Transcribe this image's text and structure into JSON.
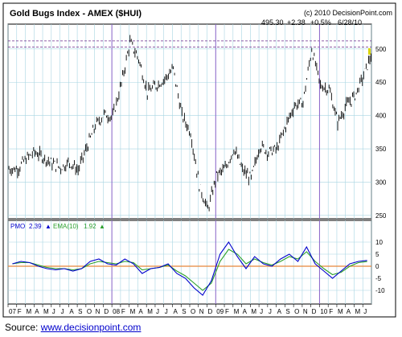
{
  "chart_data": [
    {
      "type": "line",
      "title": "Gold Bugs Index - AMEX ($HUI)",
      "copyright": "(c) 2010 DecisionPoint.com",
      "readout": {
        "last": "495.30",
        "change": "+2.38",
        "pct_change": "+0.5%",
        "date": "6/28/10"
      },
      "y_ticks": [
        "250",
        "300",
        "350",
        "400",
        "450",
        "500"
      ],
      "ylim": [
        245,
        530
      ],
      "reference_lines": [
        503,
        512
      ],
      "grid": true,
      "year_lines": [
        "2008-01",
        "2009-01",
        "2010-01"
      ],
      "series": [
        {
          "color": "#000000",
          "x": [
            "2007-01",
            "2007-02",
            "2007-03",
            "2007-04",
            "2007-05",
            "2007-06",
            "2007-07",
            "2007-08",
            "2007-09",
            "2007-10",
            "2007-11",
            "2007-12",
            "2008-01",
            "2008-02",
            "2008-03",
            "2008-04",
            "2008-05",
            "2008-06",
            "2008-07",
            "2008-08",
            "2008-09",
            "2008-10",
            "2008-11",
            "2008-12",
            "2009-01",
            "2009-02",
            "2009-03",
            "2009-04",
            "2009-05",
            "2009-06",
            "2009-07",
            "2009-08",
            "2009-09",
            "2009-10",
            "2009-11",
            "2009-12",
            "2010-01",
            "2010-02",
            "2010-03",
            "2010-04",
            "2010-05",
            "2010-06"
          ],
          "values": [
            320,
            335,
            345,
            337,
            328,
            322,
            330,
            318,
            352,
            385,
            402,
            398,
            448,
            510,
            485,
            435,
            445,
            455,
            470,
            400,
            375,
            295,
            258,
            310,
            320,
            350,
            318,
            305,
            355,
            345,
            350,
            385,
            415,
            420,
            500,
            445,
            440,
            390,
            415,
            430,
            460,
            495
          ]
        }
      ]
    },
    {
      "type": "line",
      "legend": {
        "pmo_label": "PMO",
        "pmo_value": "2.39",
        "ema_label": "EMA(10)",
        "ema_value": "1.92"
      },
      "y_ticks": [
        "10",
        "5",
        "0",
        "-5",
        "-10"
      ],
      "ylim": [
        -15,
        15
      ],
      "zero_line_color": "#e8873a",
      "series": [
        {
          "name": "PMO",
          "color": "#0000cc",
          "values": [
            1,
            2,
            1.5,
            0,
            -1,
            -1.5,
            -1,
            -2,
            -1,
            2,
            3,
            1,
            0.5,
            3,
            1,
            -3,
            -1,
            -0.5,
            1,
            -3,
            -5,
            -9,
            -12,
            -6,
            5,
            10,
            4,
            -1,
            4,
            1,
            0,
            3,
            5,
            2,
            8,
            1,
            -2,
            -5,
            -2,
            1,
            2,
            2.39
          ]
        },
        {
          "name": "EMA(10)",
          "color": "#2ca02c",
          "values": [
            1,
            1.5,
            1.5,
            0.5,
            -0.5,
            -1,
            -1,
            -1.5,
            -1,
            1,
            2,
            1.5,
            1,
            2,
            1.5,
            -1.5,
            -1,
            -0.5,
            0.5,
            -2,
            -4,
            -7,
            -10,
            -7,
            2,
            7,
            5,
            1,
            3,
            1.5,
            0.5,
            2,
            4,
            3,
            6,
            2,
            -1,
            -3.5,
            -2.5,
            0,
            1.5,
            1.92
          ]
        }
      ]
    }
  ],
  "x_axis": {
    "labels": [
      "07",
      "F",
      "M",
      "A",
      "M",
      "J",
      "J",
      "A",
      "S",
      "O",
      "N",
      "D",
      "08",
      "F",
      "M",
      "A",
      "M",
      "J",
      "J",
      "A",
      "S",
      "O",
      "N",
      "D",
      "09",
      "F",
      "M",
      "A",
      "M",
      "J",
      "J",
      "A",
      "S",
      "O",
      "N",
      "D",
      "10",
      "F",
      "M",
      "A",
      "M",
      "J"
    ]
  },
  "source": {
    "label": "Source: ",
    "link_text": "www.decisionpoint.com"
  }
}
